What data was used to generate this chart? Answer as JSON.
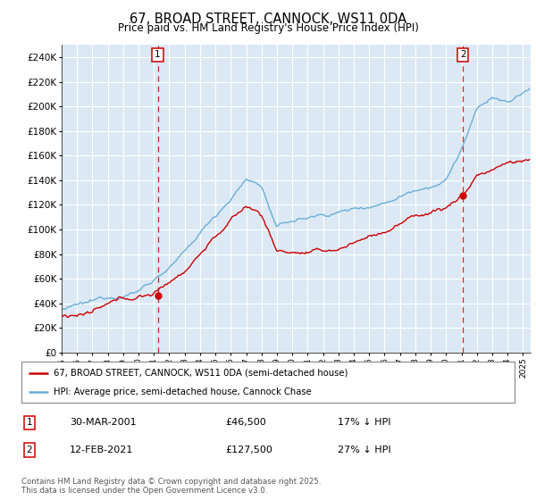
{
  "title": "67, BROAD STREET, CANNOCK, WS11 0DA",
  "subtitle": "Price paid vs. HM Land Registry's House Price Index (HPI)",
  "legend_line1": "67, BROAD STREET, CANNOCK, WS11 0DA (semi-detached house)",
  "legend_line2": "HPI: Average price, semi-detached house, Cannock Chase",
  "marker1_date": "30-MAR-2001",
  "marker1_price": 46500,
  "marker1_text": "17% ↓ HPI",
  "marker2_date": "12-FEB-2021",
  "marker2_price": 127500,
  "marker2_text": "27% ↓ HPI",
  "footnote": "Contains HM Land Registry data © Crown copyright and database right 2025.\nThis data is licensed under the Open Government Licence v3.0.",
  "hpi_color": "#6baed6",
  "price_color": "#cc0000",
  "bg_color": "#dce9f5",
  "ylim": [
    0,
    250000
  ],
  "yticks": [
    0,
    20000,
    40000,
    60000,
    80000,
    100000,
    120000,
    140000,
    160000,
    180000,
    200000,
    220000,
    240000
  ],
  "sale1_year": 2001.25,
  "sale1_price": 46500,
  "sale2_year": 2021.1,
  "sale2_price": 127500,
  "xmin": 1995,
  "xmax": 2025.5
}
